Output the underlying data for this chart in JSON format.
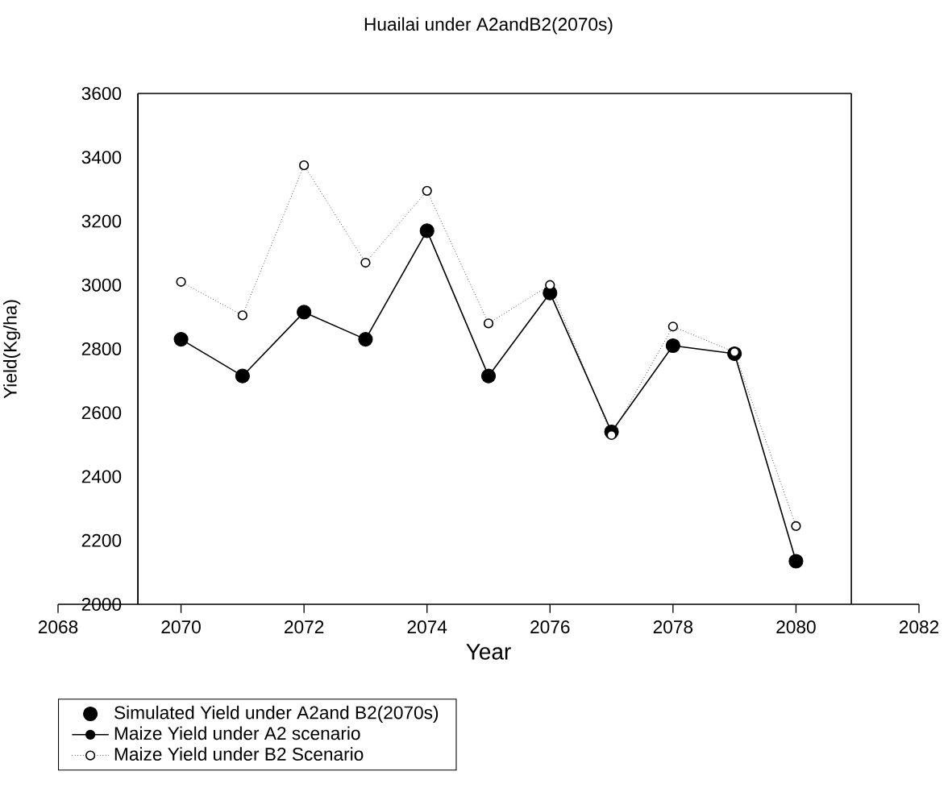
{
  "chart_data": {
    "type": "line",
    "title": "Huailai under A2andB2(2070s)",
    "xlabel": "Year",
    "ylabel": "Yield(Kg/ha)",
    "x": [
      2070,
      2071,
      2072,
      2073,
      2074,
      2075,
      2076,
      2077,
      2078,
      2079,
      2080
    ],
    "series": [
      {
        "name": "Simulated Yield under A2and B2(2070s)",
        "type": "scatter",
        "color": "#000000",
        "marker": "circle",
        "values": [
          2830,
          2715,
          2915,
          2830,
          3170,
          2715,
          2975,
          2540,
          2810,
          2785,
          2135
        ]
      },
      {
        "name": "Maize Yield under A2 scenario",
        "color": "#000000",
        "marker": "circle",
        "line_style": "solid",
        "values": [
          2830,
          2715,
          2915,
          2830,
          3170,
          2715,
          2975,
          2540,
          2810,
          2785,
          2135
        ]
      },
      {
        "name": "Maize Yield under B2 Scenario",
        "color": "#000000",
        "marker": "circle",
        "line_style": "dotted",
        "values": [
          3010,
          2905,
          3375,
          3070,
          3295,
          2880,
          3000,
          2530,
          2870,
          2790,
          2245
        ]
      }
    ],
    "xlim": [
      2068,
      2082
    ],
    "ylim": [
      2000,
      3600
    ],
    "xticks": [
      2068,
      2070,
      2072,
      2074,
      2076,
      2078,
      2080,
      2082
    ],
    "yticks": [
      2000,
      2200,
      2400,
      2600,
      2800,
      3000,
      3200,
      3400,
      3600
    ],
    "ref_lines": [
      {
        "axis": "x",
        "value": 2069.3
      },
      {
        "axis": "x",
        "value": 2080.9
      },
      {
        "axis": "y",
        "value": 3600
      }
    ],
    "legend": "bottom"
  }
}
